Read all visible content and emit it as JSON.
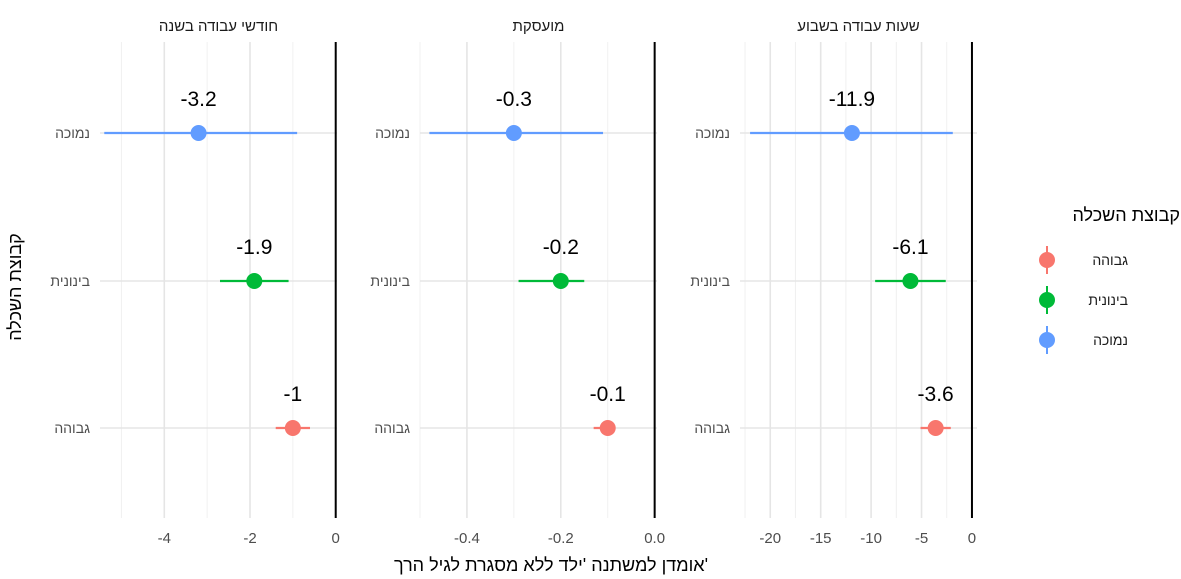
{
  "chart_data": {
    "type": "dot-whisker",
    "xlabel": "אומדן למשתנה 'ילד ללא מסגרת לגיל הרך'",
    "ylabel": "קבוצת השכלה",
    "categories": [
      "נמוכה",
      "בינונית",
      "גבוהה"
    ],
    "legend": {
      "title": "קבוצת השכלה",
      "position": "right",
      "items": [
        {
          "name": "גבוהה",
          "color": "#F8766D"
        },
        {
          "name": "בינונית",
          "color": "#00BA38"
        },
        {
          "name": "נמוכה",
          "color": "#619CFF"
        }
      ]
    },
    "grid": true,
    "panels": [
      {
        "title": "שעות עבודה בשבוע",
        "xlim": [
          -23,
          0.5
        ],
        "xticks": [
          -20,
          -15,
          -10,
          -5,
          0
        ],
        "tick_labels": [
          "-20",
          "-15",
          "-10",
          "-5",
          "0"
        ],
        "points": [
          {
            "group": "נמוכה",
            "estimate": -11.9,
            "low": -22.0,
            "high": -1.9,
            "label": "-11.9"
          },
          {
            "group": "בינונית",
            "estimate": -6.1,
            "low": -9.6,
            "high": -2.6,
            "label": "-6.1"
          },
          {
            "group": "גבוהה",
            "estimate": -3.6,
            "low": -5.1,
            "high": -2.1,
            "label": "-3.6"
          }
        ]
      },
      {
        "title": "מועסקת",
        "xlim": [
          -0.5,
          0.005
        ],
        "xticks": [
          -0.4,
          -0.2,
          0.0
        ],
        "tick_labels": [
          "-0.4",
          "-0.2",
          "0.0"
        ],
        "points": [
          {
            "group": "נמוכה",
            "estimate": -0.3,
            "low": -0.48,
            "high": -0.11,
            "label": "-0.3"
          },
          {
            "group": "בינונית",
            "estimate": -0.2,
            "low": -0.29,
            "high": -0.15,
            "label": "-0.2"
          },
          {
            "group": "גבוהה",
            "estimate": -0.1,
            "low": -0.13,
            "high": -0.09,
            "label": "-0.1"
          }
        ]
      },
      {
        "title": "חודשי עבודה בשנה",
        "xlim": [
          -5.5,
          0.03
        ],
        "xticks": [
          -4,
          -2,
          0
        ],
        "tick_labels": [
          "-4",
          "-2",
          "0"
        ],
        "points": [
          {
            "group": "נמוכה",
            "estimate": -3.2,
            "low": -5.4,
            "high": -0.9,
            "label": "-3.2"
          },
          {
            "group": "בינונית",
            "estimate": -1.9,
            "low": -2.7,
            "high": -1.1,
            "label": "-1.9"
          },
          {
            "group": "גבוהה",
            "estimate": -1.0,
            "low": -1.4,
            "high": -0.6,
            "label": "-1"
          }
        ]
      }
    ]
  }
}
